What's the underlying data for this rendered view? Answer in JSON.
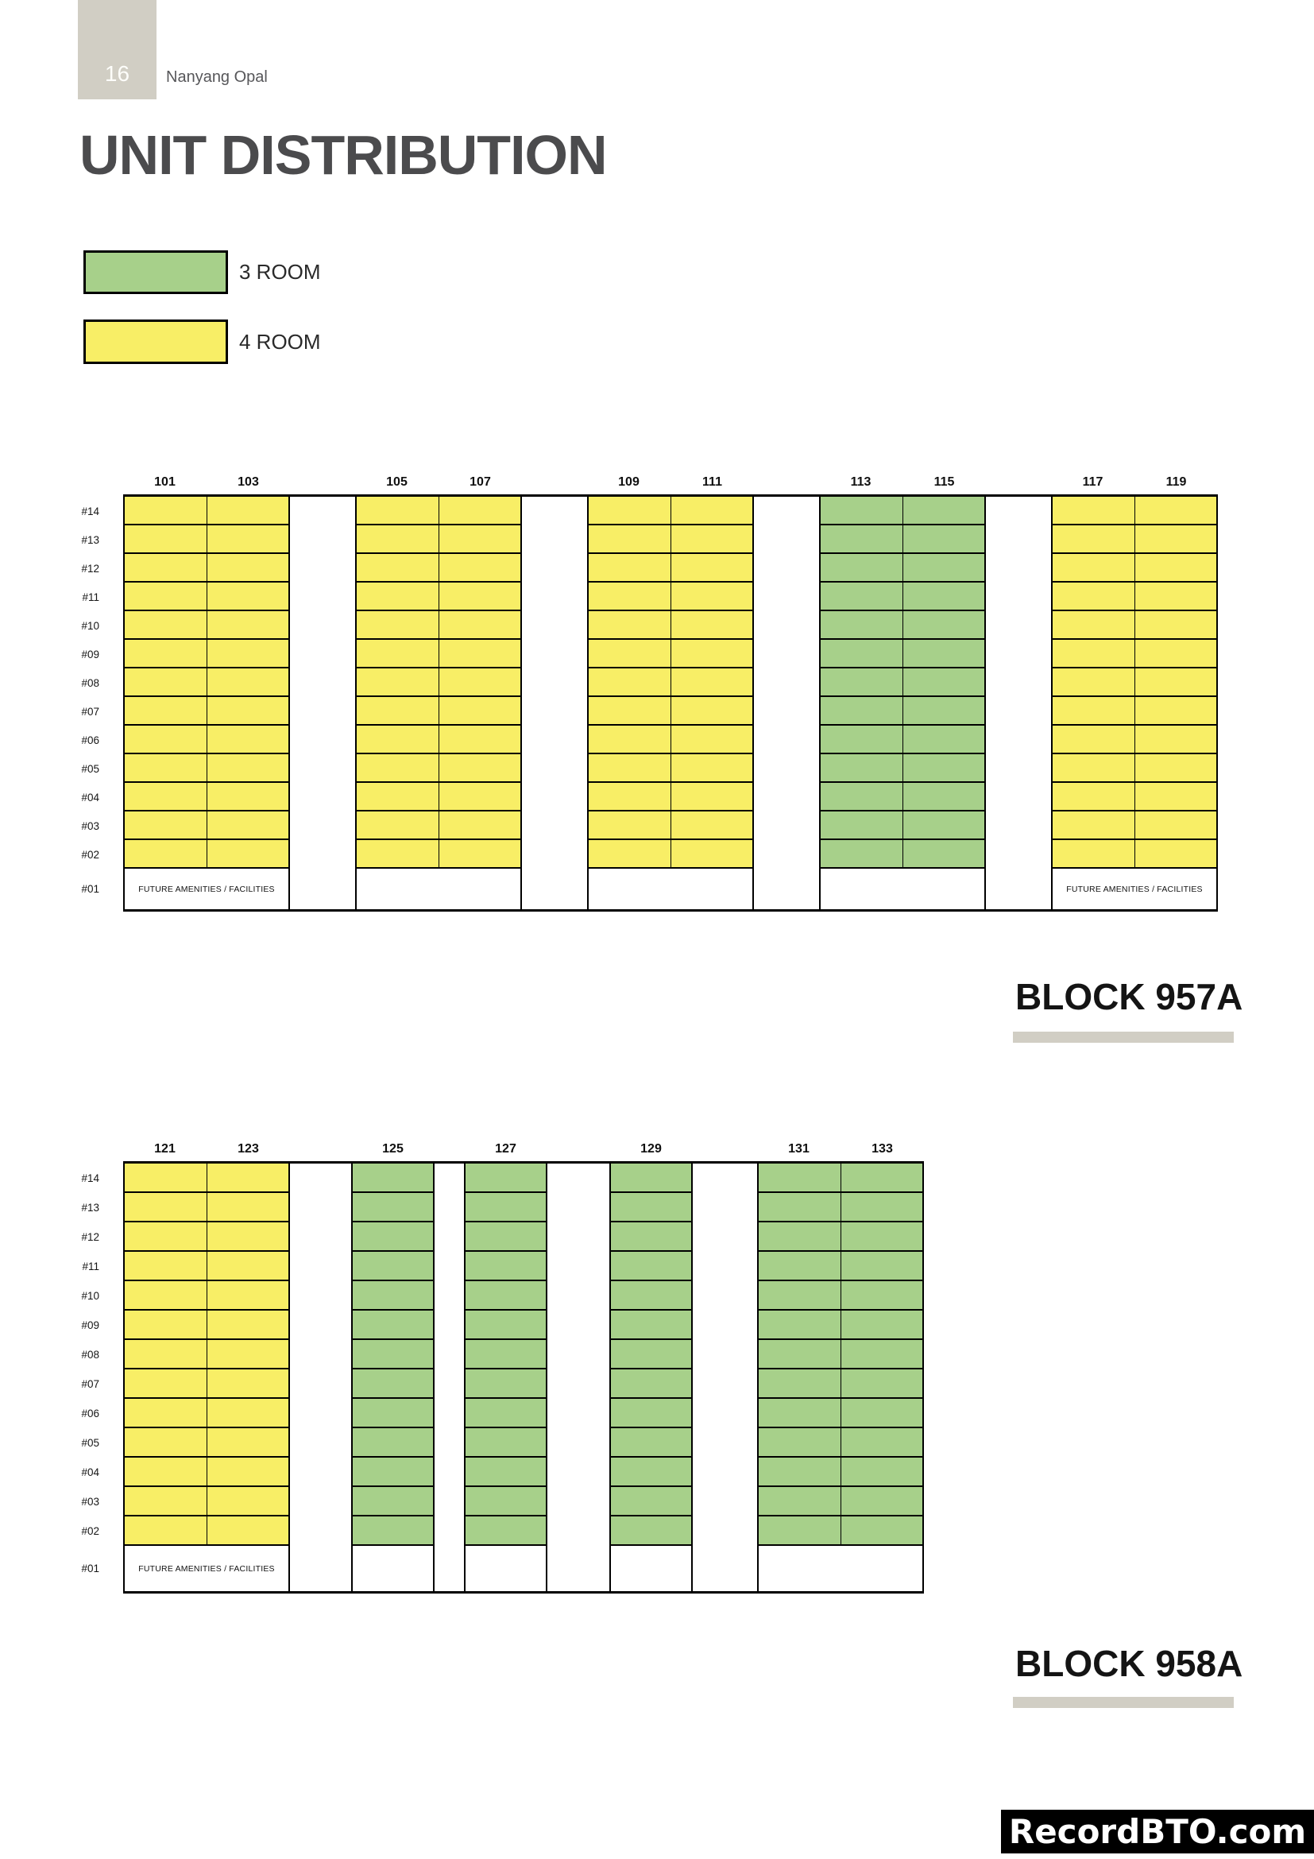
{
  "page": {
    "number": "16",
    "project": "Nanyang Opal",
    "title": "UNIT DISTRIBUTION",
    "watermark": "RecordBTO.com"
  },
  "colors": {
    "room3": "#a7d08a",
    "room4": "#f8ee66",
    "beige": "#d1cec4",
    "footer_bg": "#000000",
    "footer_text": "#ffffff"
  },
  "legend": {
    "items": [
      {
        "label": "3 ROOM",
        "type": "room3"
      },
      {
        "label": "4 ROOM",
        "type": "room4"
      }
    ]
  },
  "floors": [
    "#14",
    "#13",
    "#12",
    "#11",
    "#10",
    "#09",
    "#08",
    "#07",
    "#06",
    "#05",
    "#04",
    "#03",
    "#02"
  ],
  "ground_floor_label": "#01",
  "blocks": [
    {
      "name": "BLOCK 957A",
      "stacks": [
        {
          "units": [
            "101",
            "103"
          ],
          "type": "room4",
          "ground_text": "FUTURE AMENITIES / FACILITIES"
        },
        {
          "units": [
            "105",
            "107"
          ],
          "type": "room4",
          "ground_text": ""
        },
        {
          "units": [
            "109",
            "111"
          ],
          "type": "room4",
          "ground_text": ""
        },
        {
          "units": [
            "113",
            "115"
          ],
          "type": "room3",
          "ground_text": ""
        },
        {
          "units": [
            "117",
            "119"
          ],
          "type": "room4",
          "ground_text": "FUTURE AMENITIES / FACILITIES"
        }
      ]
    },
    {
      "name": "BLOCK 958A",
      "stacks": [
        {
          "units": [
            "121",
            "123"
          ],
          "type": "room4",
          "ground_text": "FUTURE AMENITIES / FACILITIES"
        },
        {
          "units": [
            "125"
          ],
          "type": "room3",
          "ground_text": ""
        },
        {
          "units": [
            "127"
          ],
          "type": "room3",
          "ground_text": ""
        },
        {
          "units": [
            "129"
          ],
          "type": "room3",
          "ground_text": ""
        },
        {
          "units": [
            "131",
            "133"
          ],
          "type": "room3",
          "ground_text": ""
        }
      ]
    }
  ]
}
